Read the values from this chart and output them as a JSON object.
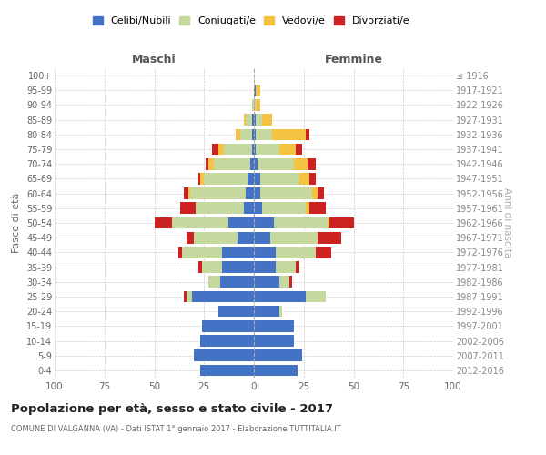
{
  "age_groups": [
    "0-4",
    "5-9",
    "10-14",
    "15-19",
    "20-24",
    "25-29",
    "30-34",
    "35-39",
    "40-44",
    "45-49",
    "50-54",
    "55-59",
    "60-64",
    "65-69",
    "70-74",
    "75-79",
    "80-84",
    "85-89",
    "90-94",
    "95-99",
    "100+"
  ],
  "birth_years": [
    "2012-2016",
    "2007-2011",
    "2002-2006",
    "1997-2001",
    "1992-1996",
    "1987-1991",
    "1982-1986",
    "1977-1981",
    "1972-1976",
    "1967-1971",
    "1962-1966",
    "1957-1961",
    "1952-1956",
    "1947-1951",
    "1942-1946",
    "1937-1941",
    "1932-1936",
    "1927-1931",
    "1922-1926",
    "1917-1921",
    "≤ 1916"
  ],
  "male": {
    "celibi": [
      27,
      30,
      27,
      26,
      18,
      31,
      17,
      16,
      16,
      8,
      13,
      5,
      4,
      3,
      2,
      1,
      1,
      1,
      0,
      0,
      0
    ],
    "coniugati": [
      0,
      0,
      0,
      0,
      0,
      3,
      6,
      10,
      20,
      22,
      28,
      24,
      28,
      22,
      18,
      14,
      6,
      3,
      1,
      0,
      0
    ],
    "vedovi": [
      0,
      0,
      0,
      0,
      0,
      0,
      0,
      0,
      0,
      0,
      0,
      0,
      1,
      2,
      3,
      3,
      2,
      1,
      0,
      0,
      0
    ],
    "divorziati": [
      0,
      0,
      0,
      0,
      0,
      1,
      0,
      2,
      2,
      4,
      9,
      8,
      2,
      1,
      1,
      3,
      0,
      0,
      0,
      0,
      0
    ]
  },
  "female": {
    "nubili": [
      22,
      24,
      20,
      20,
      13,
      26,
      13,
      11,
      11,
      8,
      10,
      4,
      3,
      3,
      2,
      1,
      1,
      1,
      0,
      1,
      0
    ],
    "coniugate": [
      0,
      0,
      0,
      0,
      1,
      10,
      5,
      10,
      20,
      24,
      27,
      22,
      26,
      20,
      18,
      12,
      8,
      3,
      1,
      0,
      0
    ],
    "vedove": [
      0,
      0,
      0,
      0,
      0,
      0,
      0,
      0,
      0,
      0,
      1,
      2,
      3,
      5,
      7,
      8,
      17,
      5,
      2,
      2,
      0
    ],
    "divorziate": [
      0,
      0,
      0,
      0,
      0,
      0,
      1,
      2,
      8,
      12,
      12,
      8,
      3,
      3,
      4,
      3,
      2,
      0,
      0,
      0,
      0
    ]
  },
  "colors": {
    "celibi": "#4472C4",
    "coniugati": "#c5d89d",
    "vedovi": "#f5c242",
    "divorziati": "#cc2222"
  },
  "xlim": 100,
  "title": "Popolazione per età, sesso e stato civile - 2017",
  "subtitle": "COMUNE DI VALGANNA (VA) - Dati ISTAT 1° gennaio 2017 - Elaborazione TUTTITALIA.IT",
  "ylabel": "Fasce di età",
  "ylabel_right": "Anni di nascita",
  "xlabel_left": "Maschi",
  "xlabel_right": "Femmine",
  "background_color": "#ffffff",
  "legend_labels": [
    "Celibi/Nubili",
    "Coniugati/e",
    "Vedovi/e",
    "Divorziati/e"
  ]
}
